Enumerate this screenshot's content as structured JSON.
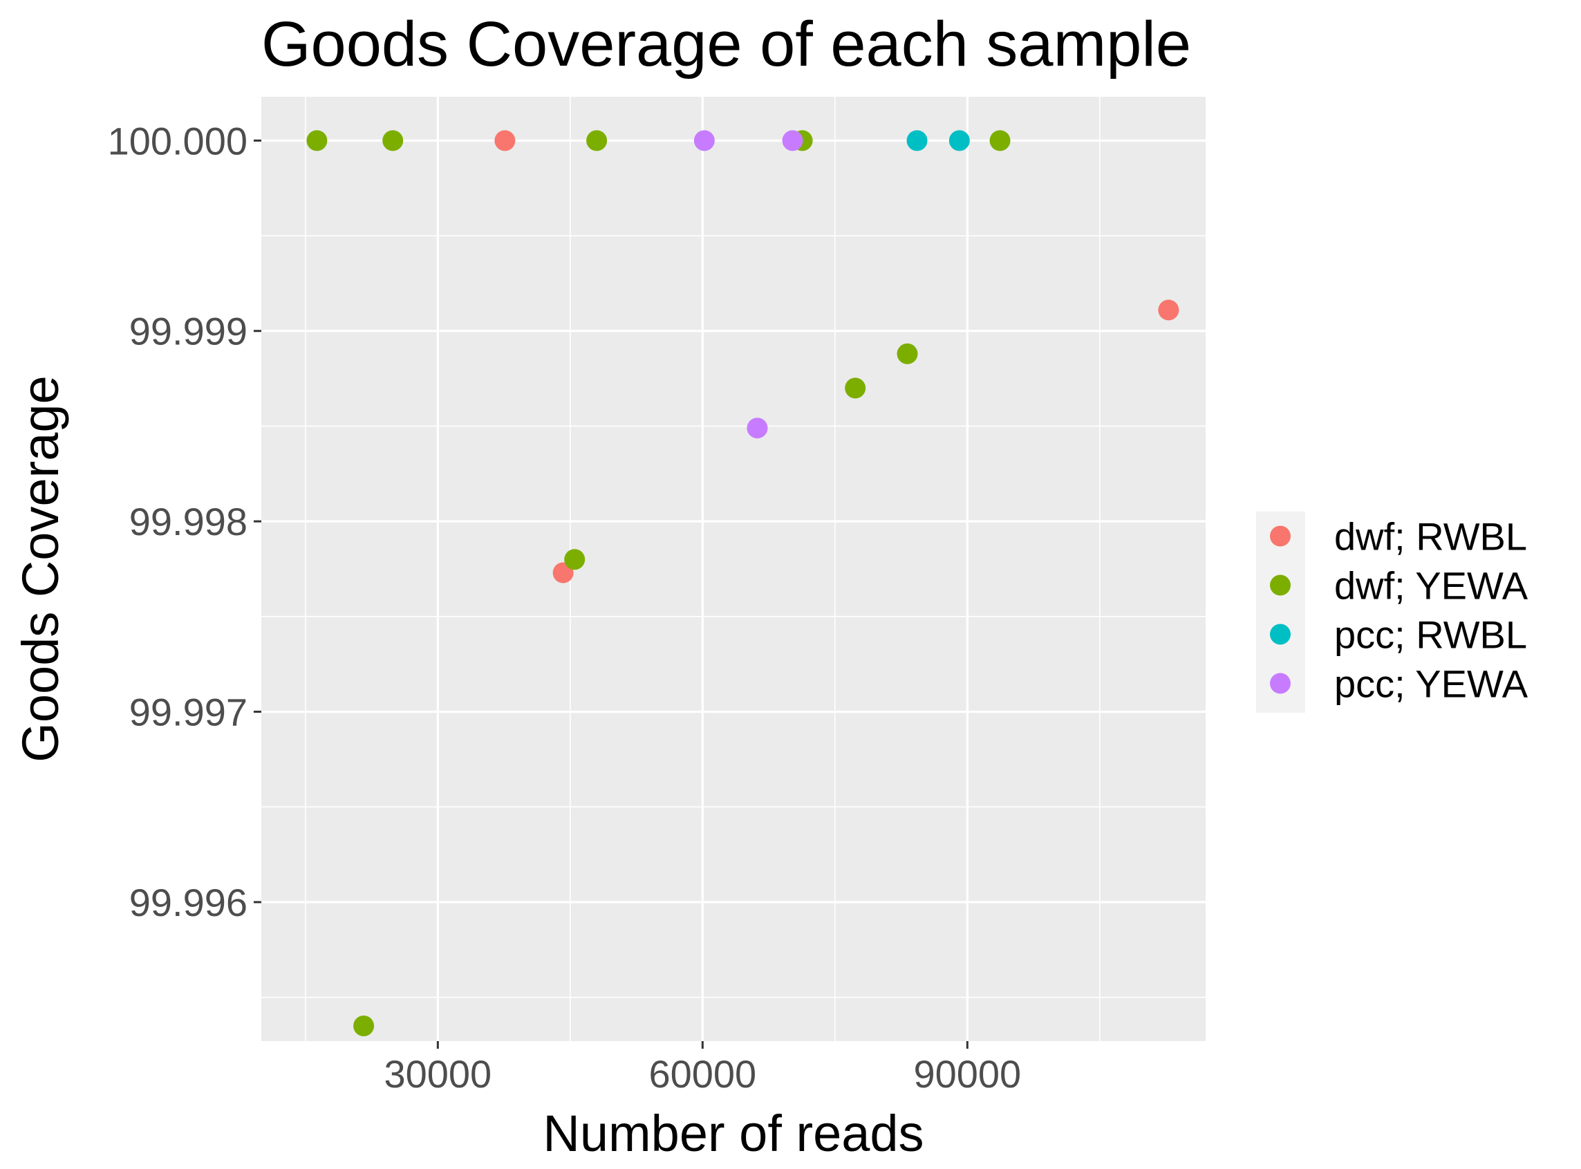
{
  "chart_data": {
    "type": "scatter",
    "title": "Goods Coverage of each sample",
    "xlabel": "Number of reads",
    "ylabel": "Goods Coverage",
    "xlim": [
      10000,
      117000
    ],
    "ylim": [
      99.99527,
      100.00023
    ],
    "x_ticks": [
      30000,
      60000,
      90000
    ],
    "x_tick_labels": [
      "30000",
      "60000",
      "90000"
    ],
    "x_minor_ticks": [
      15000,
      45000,
      75000,
      105000
    ],
    "y_ticks": [
      99.996,
      99.997,
      99.998,
      99.999,
      100.0
    ],
    "y_tick_labels": [
      "99.996",
      "99.997",
      "99.998",
      "99.999",
      "100.000"
    ],
    "y_minor_ticks": [
      99.9955,
      99.9965,
      99.9975,
      99.9985,
      99.9995
    ],
    "grid": true,
    "legend_position": "right",
    "series": [
      {
        "name": "dwf; RWBL",
        "color": "#F8766D",
        "points": [
          {
            "x": 37600,
            "y": 100.0
          },
          {
            "x": 44200,
            "y": 99.99773
          },
          {
            "x": 112800,
            "y": 99.99911
          }
        ]
      },
      {
        "name": "dwf; YEWA",
        "color": "#7CAE00",
        "points": [
          {
            "x": 16300,
            "y": 100.0
          },
          {
            "x": 24900,
            "y": 100.0
          },
          {
            "x": 48000,
            "y": 100.0
          },
          {
            "x": 71300,
            "y": 100.0
          },
          {
            "x": 93700,
            "y": 100.0
          },
          {
            "x": 21600,
            "y": 99.99535
          },
          {
            "x": 45500,
            "y": 99.9978
          },
          {
            "x": 77300,
            "y": 99.9987
          },
          {
            "x": 83200,
            "y": 99.99888
          }
        ]
      },
      {
        "name": "pcc; RWBL",
        "color": "#00BFC4",
        "points": [
          {
            "x": 84300,
            "y": 100.0
          },
          {
            "x": 89100,
            "y": 100.0
          }
        ]
      },
      {
        "name": "pcc; YEWA",
        "color": "#C77CFF",
        "points": [
          {
            "x": 60200,
            "y": 100.0
          },
          {
            "x": 70200,
            "y": 100.0
          },
          {
            "x": 66200,
            "y": 99.99849
          }
        ]
      }
    ]
  }
}
